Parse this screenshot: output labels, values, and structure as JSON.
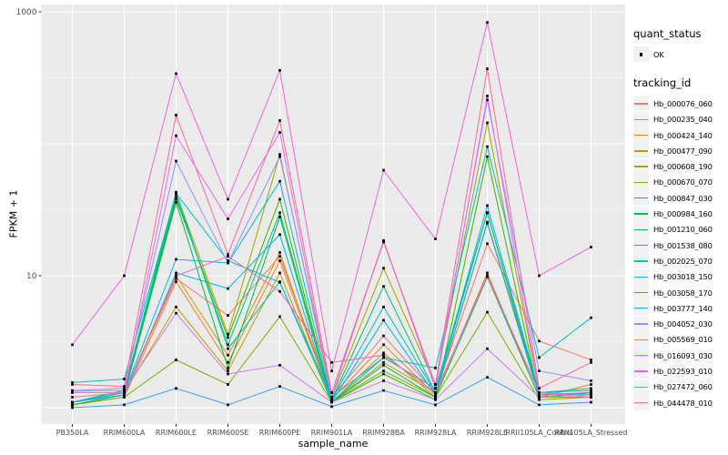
{
  "legend": {
    "quant_status_title": "quant_status",
    "ok_label": "OK",
    "tracking_title": "tracking_id"
  },
  "colors": {
    "panel_bg": "#EBEBEB",
    "grid_major": "#FFFFFF",
    "grid_minor": "#F5F5F5",
    "point": "#000000",
    "axis_text": "#4D4D4D",
    "tick_mark": "#333333",
    "legend_key_bg": "#F2F2F2"
  },
  "chart_data": {
    "type": "line",
    "title": "",
    "xlabel": "sample_name",
    "ylabel": "FPKM + 1",
    "y_scale": "log10",
    "ylim": [
      0.9,
      1150
    ],
    "grid": true,
    "legend_position": "right",
    "y_ticks": [
      {
        "v": 1000,
        "label": "1000"
      },
      {
        "v": 10,
        "label": "10"
      }
    ],
    "y_major_gridlines": [
      1,
      10,
      100,
      1000
    ],
    "y_minor_gridlines": [
      3.162,
      31.62,
      316.2
    ],
    "point_shape": "small-black-square",
    "quant_status_all": "OK",
    "categories": [
      "PB350LA",
      "RRIM600LA",
      "RRIM600LE",
      "RRIM600SE",
      "RRIM600PE",
      "RRIM901LA",
      "RRIM928BA",
      "RRIM928LA",
      "RRIM928LE",
      "RRII105LA_Control",
      "RRII105LA_Stressed"
    ],
    "series": [
      {
        "name": "Hb_000076_060",
        "color": "#F8766D",
        "values": [
          1.1,
          1.3,
          9.5,
          5.0,
          14,
          1.2,
          3.5,
          1.3,
          17.5,
          3.2,
          2.3
        ]
      },
      {
        "name": "Hb_000235_040",
        "color": "#EA8331",
        "values": [
          1.05,
          1.2,
          9.0,
          2.2,
          13,
          1.15,
          3.0,
          1.25,
          10.5,
          1.2,
          1.5
        ]
      },
      {
        "name": "Hb_000424_140",
        "color": "#D89000",
        "values": [
          1.05,
          1.25,
          10,
          2.5,
          15,
          1.1,
          2.6,
          1.2,
          25.5,
          1.25,
          1.3
        ]
      },
      {
        "name": "Hb_000477_090",
        "color": "#C09B00",
        "values": [
          1.1,
          1.3,
          5.8,
          1.9,
          10.5,
          1.1,
          2.2,
          1.3,
          30,
          1.2,
          1.2
        ]
      },
      {
        "name": "Hb_000608_190",
        "color": "#A3A500",
        "values": [
          1.1,
          1.35,
          42,
          3.6,
          83,
          1.2,
          11.4,
          1.5,
          144,
          1.3,
          1.25
        ]
      },
      {
        "name": "Hb_000670_070",
        "color": "#7CAE00",
        "values": [
          1.05,
          1.2,
          2.3,
          1.5,
          4.9,
          1.1,
          1.9,
          1.2,
          5.3,
          1.15,
          1.2
        ]
      },
      {
        "name": "Hb_000847_030",
        "color": "#39B600",
        "values": [
          1.1,
          1.3,
          38,
          3.4,
          38,
          1.1,
          1.8,
          1.15,
          80,
          1.2,
          1.3
        ]
      },
      {
        "name": "Hb_000984_160",
        "color": "#00BB4E",
        "values": [
          1.05,
          1.25,
          36,
          2.0,
          28,
          1.1,
          2.1,
          1.2,
          9.8,
          1.2,
          1.3
        ]
      },
      {
        "name": "Hb_001210_060",
        "color": "#00BF7D",
        "values": [
          1.1,
          1.3,
          40,
          3.0,
          30,
          1.15,
          8.3,
          1.3,
          30,
          1.25,
          1.3
        ]
      },
      {
        "name": "Hb_001538_080",
        "color": "#00C1A3",
        "values": [
          1.1,
          1.35,
          43,
          2.8,
          9.0,
          1.1,
          2.4,
          1.4,
          30,
          1.3,
          1.4
        ]
      },
      {
        "name": "Hb_002025_070",
        "color": "#00BFC4",
        "values": [
          1.55,
          1.65,
          42,
          13,
          8.9,
          1.2,
          2.4,
          2.0,
          95,
          2.4,
          4.8
        ]
      },
      {
        "name": "Hb_003018_150",
        "color": "#00BAE0",
        "values": [
          1.1,
          1.3,
          13.3,
          12.5,
          52,
          1.15,
          5.8,
          1.3,
          34,
          1.3,
          1.35
        ]
      },
      {
        "name": "Hb_003058_170",
        "color": "#00B0F6",
        "values": [
          1.1,
          1.25,
          10.5,
          8.0,
          20.5,
          1.1,
          4.6,
          1.25,
          25,
          1.2,
          1.3
        ]
      },
      {
        "name": "Hb_003777_140",
        "color": "#35A2FF",
        "values": [
          1.0,
          1.05,
          1.4,
          1.05,
          1.45,
          1.02,
          1.35,
          1.05,
          1.7,
          1.05,
          1.1
        ]
      },
      {
        "name": "Hb_004052_030",
        "color": "#9590FF",
        "values": [
          1.35,
          1.4,
          74,
          12.5,
          80,
          1.3,
          18,
          1.5,
          215,
          1.9,
          1.6
        ]
      },
      {
        "name": "Hb_005569_010",
        "color": "#C77CFF",
        "values": [
          1.33,
          1.35,
          5.2,
          1.8,
          2.1,
          1.1,
          1.6,
          1.15,
          2.8,
          1.2,
          1.25
        ]
      },
      {
        "name": "Hb_016093_030",
        "color": "#E76BF3",
        "values": [
          1.3,
          1.3,
          115,
          27,
          122,
          1.2,
          18.5,
          1.4,
          230,
          1.3,
          1.2
        ]
      },
      {
        "name": "Hb_022593_010",
        "color": "#FA62DB",
        "values": [
          3.0,
          10,
          340,
          38,
          360,
          1.9,
          63,
          19,
          830,
          10,
          16.5
        ]
      },
      {
        "name": "Hb_027472_060",
        "color": "#FF62BC",
        "values": [
          1.2,
          1.3,
          10,
          14,
          7.6,
          2.2,
          2.5,
          1.3,
          10,
          1.3,
          1.25
        ]
      },
      {
        "name": "Hb_044478_010",
        "color": "#FF6A98",
        "values": [
          1.5,
          1.45,
          165,
          14.5,
          150,
          1.3,
          18.2,
          1.5,
          370,
          1.4,
          2.2
        ]
      }
    ]
  }
}
